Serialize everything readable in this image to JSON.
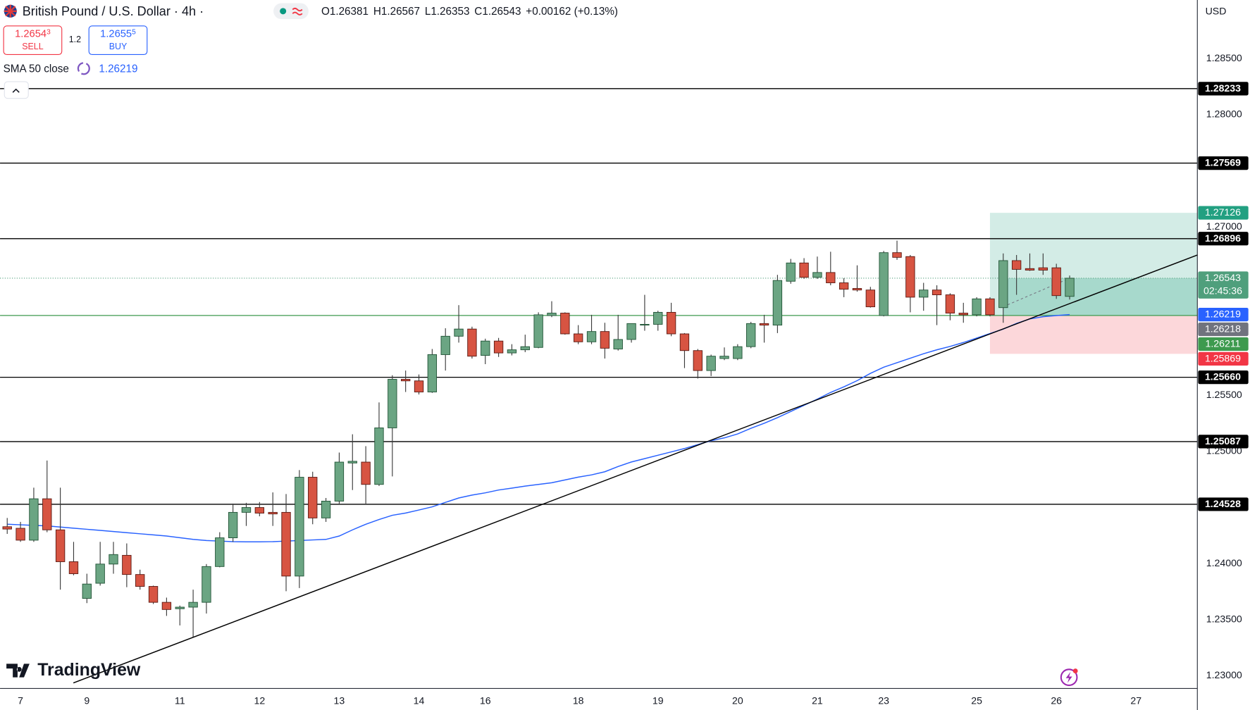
{
  "chart_data": {
    "type": "candlestick",
    "title": "British Pound / U.S. Dollar · 4h ·",
    "ohlc_labels": [
      "O",
      "H",
      "L",
      "C"
    ],
    "change": "+0.00162 (+0.13%)",
    "sell": {
      "main": "1.2654",
      "pip": "3",
      "label": "SELL"
    },
    "spread": 1.2,
    "buy": {
      "main": "1.2655",
      "pip": "5",
      "label": "BUY"
    },
    "currency": "USD",
    "logo": "TradingView",
    "countdown": "02:45:36",
    "categories": [
      null,
      "7",
      null,
      null,
      null,
      null,
      "9",
      null,
      null,
      null,
      null,
      null,
      null,
      "11",
      null,
      null,
      null,
      null,
      null,
      "12",
      null,
      null,
      null,
      null,
      null,
      "13",
      null,
      null,
      null,
      null,
      null,
      "14",
      null,
      null,
      null,
      null,
      "16",
      null,
      null,
      null,
      null,
      null,
      null,
      "18",
      null,
      null,
      null,
      null,
      null,
      "19",
      null,
      null,
      null,
      null,
      null,
      "20",
      null,
      null,
      null,
      null,
      null,
      "21",
      null,
      null,
      null,
      null,
      "23",
      null,
      null,
      null,
      null,
      null,
      null,
      "25",
      null,
      null,
      null,
      null,
      null,
      "26",
      null,
      null,
      null,
      null,
      null,
      "27"
    ],
    "candles": {
      "up_color": "#6ba583",
      "down_color": "#d75442",
      "up_border": "#225437",
      "down_border": "#5b1a13",
      "wick_color": "#3a3a3a",
      "open": [
        1.24328,
        1.24314,
        1.24208,
        1.24577,
        1.243,
        1.24016,
        1.23689,
        1.23824,
        1.23995,
        1.24073,
        1.23902,
        1.23796,
        1.23654,
        1.23597,
        1.23611,
        1.23654,
        1.23973,
        1.24229,
        1.24456,
        1.24499,
        1.24456,
        1.24456,
        1.23888,
        1.24769,
        1.24406,
        1.24556,
        1.24896,
        1.24904,
        1.24705,
        1.25209,
        1.25642,
        1.25628,
        1.25529,
        1.25862,
        1.26026,
        1.2609,
        1.25855,
        1.25983,
        1.25877,
        1.25905,
        1.25926,
        1.2621,
        1.26232,
        1.26047,
        1.25976,
        1.26068,
        1.25912,
        1.25997,
        1.26125,
        1.26132,
        1.26239,
        1.26047,
        1.25898,
        1.2572,
        1.25827,
        1.25827,
        1.25933,
        1.26139,
        1.26125,
        1.26516,
        1.26679,
        1.26551,
        1.26594,
        1.26502,
        1.26452,
        1.26438,
        1.2621,
        1.26771,
        1.26736,
        1.26374,
        1.26438,
        1.26395,
        1.26232,
        1.26217,
        1.26359,
        1.26281,
        1.267,
        1.26629,
        1.26636,
        1.26636,
        1.26381,
        null,
        null,
        null,
        null,
        null
      ],
      "high": [
        1.24406,
        1.24371,
        1.24676,
        1.24918,
        1.24676,
        1.24193,
        1.23909,
        1.24193,
        1.24193,
        1.24179,
        1.23945,
        1.23803,
        1.23696,
        1.23625,
        1.23767,
        1.23995,
        1.24279,
        1.24534,
        1.24541,
        1.24548,
        1.24634,
        1.24619,
        1.24833,
        1.24818,
        1.24584,
        1.24989,
        1.25152,
        1.25046,
        1.25436,
        1.25678,
        1.2572,
        1.25685,
        1.25912,
        1.26097,
        1.26303,
        1.26111,
        1.26004,
        1.26011,
        1.25955,
        1.2604,
        1.26239,
        1.26338,
        1.26239,
        1.26125,
        1.26217,
        1.26146,
        1.26217,
        1.26139,
        1.26395,
        1.26253,
        1.26324,
        1.26054,
        1.25912,
        1.25862,
        1.25926,
        1.25955,
        1.26154,
        1.26217,
        1.26573,
        1.26715,
        1.26722,
        1.26736,
        1.26779,
        1.26544,
        1.26658,
        1.26466,
        1.26786,
        1.26878,
        1.2675,
        1.26502,
        1.2648,
        1.26409,
        1.26324,
        1.26374,
        1.26374,
        1.26764,
        1.2675,
        1.26764,
        1.26764,
        1.26672,
        1.26567,
        null,
        null,
        null,
        null,
        null
      ],
      "low": [
        1.24264,
        1.24193,
        1.24193,
        1.24279,
        1.23767,
        1.23895,
        1.23647,
        1.23803,
        1.23909,
        1.23789,
        1.23767,
        1.23639,
        1.23533,
        1.23448,
        1.23341,
        1.23554,
        1.23966,
        1.24193,
        1.24335,
        1.24421,
        1.24335,
        1.23753,
        1.23781,
        1.2435,
        1.24371,
        1.24534,
        1.24655,
        1.24534,
        1.24691,
        1.24776,
        1.25529,
        1.25507,
        1.25521,
        1.2572,
        1.25969,
        1.25827,
        1.25777,
        1.25841,
        1.25855,
        1.25884,
        1.25919,
        1.26196,
        1.2604,
        1.25955,
        1.25955,
        1.25827,
        1.25898,
        1.25969,
        1.26075,
        1.26075,
        1.26026,
        1.25742,
        1.25649,
        1.25671,
        1.25813,
        1.25813,
        1.25919,
        1.25969,
        1.26054,
        1.26494,
        1.26537,
        1.26537,
        1.2648,
        1.26374,
        1.26423,
        1.26281,
        1.26203,
        1.26707,
        1.26239,
        1.26253,
        1.26125,
        1.26168,
        1.26146,
        1.26203,
        1.26203,
        1.26146,
        1.26395,
        1.26608,
        1.26573,
        1.26359,
        1.26353,
        null,
        null,
        null,
        null,
        null
      ],
      "close": [
        1.24307,
        1.24208,
        1.24577,
        1.243,
        1.24016,
        1.23909,
        1.23817,
        1.23995,
        1.2408,
        1.23902,
        1.23796,
        1.23654,
        1.2359,
        1.23611,
        1.23654,
        1.23973,
        1.24229,
        1.24456,
        1.24499,
        1.24449,
        1.24442,
        1.23888,
        1.24769,
        1.24406,
        1.24556,
        1.24904,
        1.24911,
        1.24705,
        1.25209,
        1.25642,
        1.25628,
        1.25529,
        1.25862,
        1.26026,
        1.2609,
        1.25848,
        1.25983,
        1.25877,
        1.25905,
        1.25933,
        1.26217,
        1.26232,
        1.26047,
        1.25976,
        1.26068,
        1.25919,
        1.25997,
        1.26139,
        1.26132,
        1.26239,
        1.26047,
        1.25898,
        1.2572,
        1.25848,
        1.25848,
        1.25933,
        1.26139,
        1.26125,
        1.26523,
        1.26679,
        1.26551,
        1.26594,
        1.26502,
        1.26445,
        1.26438,
        1.26288,
        1.26771,
        1.26729,
        1.26374,
        1.26438,
        1.26395,
        1.26232,
        1.26217,
        1.26359,
        1.26217,
        1.267,
        1.26622,
        1.26615,
        1.26615,
        1.26388,
        1.26543,
        null,
        null,
        null,
        null,
        null
      ]
    },
    "sma": {
      "name": "SMA 50 close",
      "color": "#2962ff",
      "values": [
        1.2435,
        1.24345,
        1.2434,
        1.24335,
        1.24325,
        1.24315,
        1.24305,
        1.24295,
        1.24285,
        1.24275,
        1.24265,
        1.24255,
        1.24245,
        1.2423,
        1.24215,
        1.24205,
        1.242,
        1.24195,
        1.24193,
        1.24193,
        1.24195,
        1.242,
        1.24205,
        1.2421,
        1.24215,
        1.24245,
        1.243,
        1.2435,
        1.24392,
        1.2443,
        1.2445,
        1.24477,
        1.24505,
        1.24545,
        1.24584,
        1.2461,
        1.2463,
        1.24655,
        1.24672,
        1.2469,
        1.24705,
        1.2472,
        1.24745,
        1.2477,
        1.2479,
        1.24818,
        1.24865,
        1.24905,
        1.24935,
        1.24965,
        1.24995,
        1.25025,
        1.2506,
        1.25095,
        1.2512,
        1.25155,
        1.25205,
        1.2525,
        1.253,
        1.25355,
        1.2541,
        1.25465,
        1.25525,
        1.25575,
        1.2563,
        1.25695,
        1.2575,
        1.2579,
        1.2583,
        1.2587,
        1.25905,
        1.25935,
        1.2597,
        1.2601,
        1.2605,
        1.2609,
        1.2614,
        1.2618,
        1.262,
        1.2621,
        1.26219,
        null,
        null,
        null,
        null,
        null
      ]
    },
    "levels": [
      1.28233,
      1.27569,
      1.26896,
      {
        "value": 1.2566,
        "label": "1.25660"
      },
      1.25087,
      1.24528
    ],
    "level_color": "#000000",
    "position": {
      "target": 1.27126,
      "entry": 1.26211,
      "stop": 1.25869,
      "start_index": 74,
      "target_color": "#22a081",
      "entry_color": "#3d9a4e",
      "stop_color": "#f23645"
    },
    "tags": [
      {
        "value": 1.26218,
        "color": "#70737e"
      }
    ],
    "current_color": "#4f9f7c",
    "ylim": [
      1.22886,
      1.29023
    ],
    "yticks": [
      {
        "value": 1.23,
        "label": "1.23000"
      },
      {
        "value": 1.235,
        "label": "1.23500"
      },
      {
        "value": 1.24,
        "label": "1.24000"
      },
      {
        "value": 1.25,
        "label": "1.25000"
      },
      {
        "value": 1.255,
        "label": "1.25500"
      },
      {
        "value": 1.27,
        "label": "1.27000"
      },
      {
        "value": 1.28,
        "label": "1.28000"
      },
      {
        "value": 1.285,
        "label": "1.28500"
      }
    ],
    "grid": false
  }
}
